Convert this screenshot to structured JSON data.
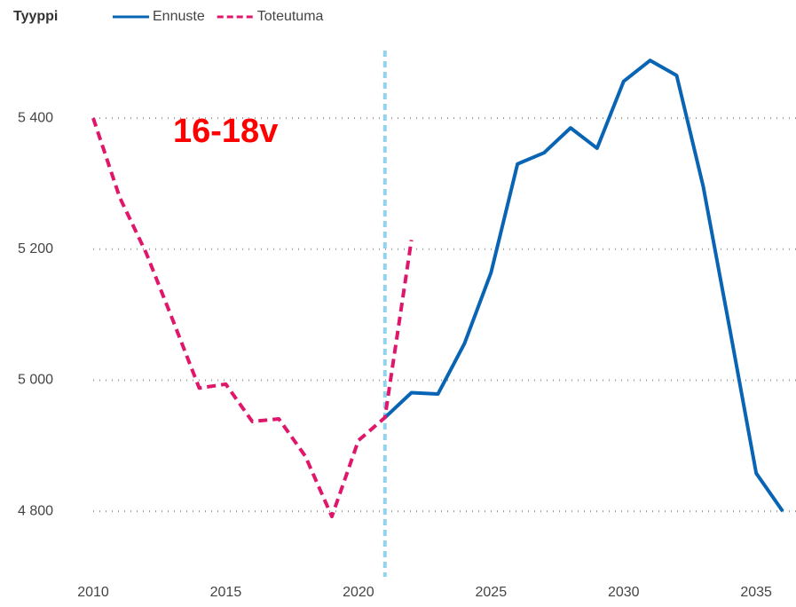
{
  "chart_data": {
    "type": "line",
    "legend_title": "Tyyppi",
    "annotation": "16-18v",
    "x": [
      2010,
      2011,
      2012,
      2013,
      2014,
      2015,
      2016,
      2017,
      2018,
      2019,
      2020,
      2021,
      2022,
      2023,
      2024,
      2025,
      2026,
      2027,
      2028,
      2029,
      2030,
      2031,
      2032,
      2033,
      2034,
      2035,
      2036
    ],
    "series": [
      {
        "name": "Ennuste",
        "color": "#0a64b4",
        "dash": false,
        "values": [
          null,
          null,
          null,
          null,
          null,
          null,
          null,
          null,
          null,
          null,
          null,
          4943,
          4981,
          4979,
          5056,
          5164,
          5330,
          5347,
          5385,
          5354,
          5456,
          5488,
          5465,
          5296,
          5079,
          4858,
          4800
        ]
      },
      {
        "name": "Toteutuma",
        "color": "#e0166b",
        "dash": true,
        "values": [
          5400,
          5279,
          5194,
          5092,
          4988,
          4994,
          4937,
          4941,
          4884,
          4792,
          4908,
          4943,
          5214,
          null,
          null,
          null,
          null,
          null,
          null,
          null,
          null,
          null,
          null,
          null,
          null,
          null,
          null
        ]
      }
    ],
    "vline": 2021,
    "vline_color": "#8fd3ec",
    "xlim": [
      2010,
      2036.5
    ],
    "xticks": [
      2010,
      2015,
      2020,
      2025,
      2030,
      2035
    ],
    "ylim": [
      4700,
      5503
    ],
    "yticks": [
      {
        "value": 4800,
        "label": "4 800"
      },
      {
        "value": 5000,
        "label": "5 000"
      },
      {
        "value": 5200,
        "label": "5 200"
      },
      {
        "value": 5400,
        "label": "5 400"
      }
    ],
    "grid": true
  }
}
